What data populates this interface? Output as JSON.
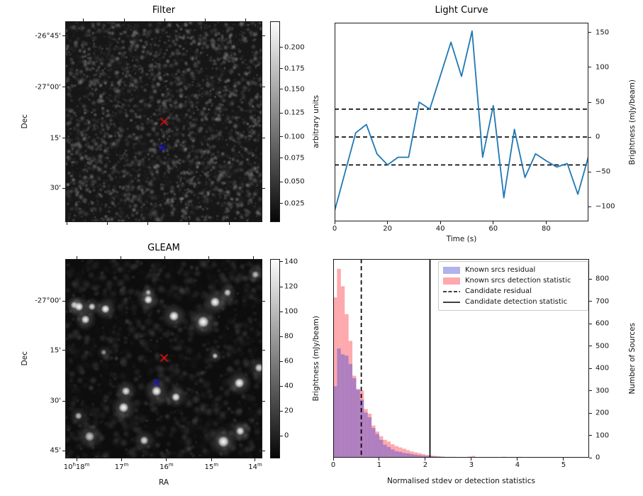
{
  "figure": {
    "background": "#ffffff"
  },
  "chart_data": [
    {
      "id": "filter",
      "type": "heatmap",
      "title": "Filter",
      "ylabel": "Dec",
      "yticks": [
        {
          "label": "-26°45'",
          "pos": 0.074
        },
        {
          "label": "-27°00'",
          "pos": 0.328
        },
        {
          "label": "15'",
          "pos": 0.582
        },
        {
          "label": "30'",
          "pos": 0.832
        }
      ],
      "xticks_bottom_pos": [
        0.008,
        0.215,
        0.42,
        0.628,
        0.832
      ],
      "xticks_top_pos": [
        0.09,
        0.3,
        0.505,
        0.71,
        0.915
      ],
      "colorbar": {
        "label": "arbitrary units",
        "top_color": "#fbfbfb",
        "bottom_color": "#060606",
        "ticks": [
          {
            "label": "0.200",
            "pos": 0.13
          },
          {
            "label": "0.175",
            "pos": 0.236
          },
          {
            "label": "0.150",
            "pos": 0.339
          },
          {
            "label": "0.125",
            "pos": 0.457
          },
          {
            "label": "0.100",
            "pos": 0.575
          },
          {
            "label": "0.075",
            "pos": 0.681
          },
          {
            "label": "0.050",
            "pos": 0.799
          },
          {
            "label": "0.025",
            "pos": 0.908
          }
        ]
      },
      "markers": [
        {
          "shape": "x",
          "color": "#e11212",
          "x": 0.502,
          "y": 0.5
        },
        {
          "shape": "x",
          "color": "#1515dd",
          "x": 0.493,
          "y": 0.629
        }
      ]
    },
    {
      "id": "light_curve",
      "type": "line",
      "title": "Light Curve",
      "xlabel": "Time (s)",
      "ylabel": "Brightness (mJy/beam)",
      "line_color": "#1f77b4",
      "x": [
        0,
        4,
        8,
        12,
        16,
        20,
        24,
        28,
        32,
        36,
        40,
        44,
        48,
        52,
        56,
        60,
        64,
        68,
        72,
        76,
        80,
        84,
        88,
        92,
        96
      ],
      "y": [
        -106,
        -50,
        6,
        18,
        -24,
        -40,
        -29,
        -29,
        50,
        40,
        88,
        136,
        87,
        152,
        -29,
        45,
        -87,
        11,
        -58,
        -24,
        -34,
        -43,
        -38,
        -82,
        -28
      ],
      "hlines": [
        40,
        0,
        -40
      ],
      "xlim": [
        0,
        96
      ],
      "ylim": [
        -121,
        164
      ],
      "xticks": [
        {
          "label": "0",
          "v": 0
        },
        {
          "label": "20",
          "v": 20
        },
        {
          "label": "40",
          "v": 40
        },
        {
          "label": "60",
          "v": 60
        },
        {
          "label": "80",
          "v": 80
        }
      ],
      "yticks": [
        {
          "label": "150",
          "v": 150
        },
        {
          "label": "100",
          "v": 100
        },
        {
          "label": "50",
          "v": 50
        },
        {
          "label": "0",
          "v": 0
        },
        {
          "label": "−50",
          "v": -50
        },
        {
          "label": "−100",
          "v": -100
        }
      ]
    },
    {
      "id": "gleam",
      "type": "heatmap",
      "title": "GLEAM",
      "xlabel": "RA",
      "ylabel": "Dec",
      "yticks": [
        {
          "label": "-27°00'",
          "pos": 0.21
        },
        {
          "label": "15'",
          "pos": 0.459
        },
        {
          "label": "30'",
          "pos": 0.712
        },
        {
          "label": "45'",
          "pos": 0.961
        }
      ],
      "xticks": [
        {
          "pos": 0.058,
          "parts": [
            [
              "10",
              false
            ],
            [
              "h",
              true
            ],
            [
              "18",
              false
            ],
            [
              "m",
              true
            ]
          ]
        },
        {
          "pos": 0.286,
          "parts": [
            [
              "17",
              false
            ],
            [
              "m",
              true
            ]
          ]
        },
        {
          "pos": 0.514,
          "parts": [
            [
              "16",
              false
            ],
            [
              "m",
              true
            ]
          ]
        },
        {
          "pos": 0.742,
          "parts": [
            [
              "15",
              false
            ],
            [
              "m",
              true
            ]
          ]
        },
        {
          "pos": 0.964,
          "parts": [
            [
              "14",
              false
            ],
            [
              "m",
              true
            ]
          ]
        }
      ],
      "xticks_top_pos": [
        0.059,
        0.281,
        0.506,
        0.73,
        0.956
      ],
      "colorbar": {
        "label": "Brightness (mJy/beam)",
        "top_color": "#fbfbfb",
        "bottom_color": "#060606",
        "ticks": [
          {
            "label": "140",
            "pos": 0.014
          },
          {
            "label": "120",
            "pos": 0.139
          },
          {
            "label": "100",
            "pos": 0.264
          },
          {
            "label": "80",
            "pos": 0.389
          },
          {
            "label": "60",
            "pos": 0.514
          },
          {
            "label": "40",
            "pos": 0.638
          },
          {
            "label": "20",
            "pos": 0.763
          },
          {
            "label": "0",
            "pos": 0.887
          }
        ]
      },
      "markers": [
        {
          "shape": "x",
          "color": "#e11212",
          "x": 0.502,
          "y": 0.496
        },
        {
          "shape": "x",
          "color": "#1515dd",
          "x": 0.463,
          "y": 0.62
        }
      ],
      "sources": [
        {
          "x": 0.043,
          "y": 0.229,
          "r": 5,
          "b": 0.9
        },
        {
          "x": 0.067,
          "y": 0.237,
          "r": 6,
          "b": 1.0
        },
        {
          "x": 0.0997,
          "y": 0.302,
          "r": 6,
          "b": 0.95
        },
        {
          "x": 0.133,
          "y": 0.237,
          "r": 5,
          "b": 0.85
        },
        {
          "x": 0.202,
          "y": 0.249,
          "r": 6,
          "b": 1.0
        },
        {
          "x": 0.421,
          "y": 0.202,
          "r": 6,
          "b": 1.0
        },
        {
          "x": 0.421,
          "y": 0.165,
          "r": 4,
          "b": 0.7
        },
        {
          "x": 0.552,
          "y": 0.285,
          "r": 7,
          "b": 1.0
        },
        {
          "x": 0.702,
          "y": 0.314,
          "r": 8,
          "b": 1.0
        },
        {
          "x": 0.762,
          "y": 0.214,
          "r": 7,
          "b": 1.0
        },
        {
          "x": 0.826,
          "y": 0.166,
          "r": 5,
          "b": 0.8
        },
        {
          "x": 0.886,
          "y": 0.623,
          "r": 7,
          "b": 1.0
        },
        {
          "x": 0.463,
          "y": 0.664,
          "r": 7,
          "b": 1.0
        },
        {
          "x": 0.307,
          "y": 0.664,
          "r": 6,
          "b": 0.9
        },
        {
          "x": 0.562,
          "y": 0.694,
          "r": 6,
          "b": 0.95
        },
        {
          "x": 0.295,
          "y": 0.747,
          "r": 7,
          "b": 1.0
        },
        {
          "x": 0.064,
          "y": 0.789,
          "r": 5,
          "b": 0.7
        },
        {
          "x": 0.4,
          "y": 0.913,
          "r": 6,
          "b": 0.85
        },
        {
          "x": 0.805,
          "y": 0.919,
          "r": 8,
          "b": 1.0
        },
        {
          "x": 0.891,
          "y": 0.866,
          "r": 6,
          "b": 0.9
        },
        {
          "x": 0.121,
          "y": 0.893,
          "r": 7,
          "b": 0.75
        },
        {
          "x": 0.987,
          "y": 0.546,
          "r": 6,
          "b": 0.85
        },
        {
          "x": 0.762,
          "y": 0.486,
          "r": 4,
          "b": 0.75
        },
        {
          "x": 0.968,
          "y": 0.075,
          "r": 5,
          "b": 0.7
        },
        {
          "x": 0.193,
          "y": 0.468,
          "r": 4,
          "b": 0.5
        }
      ]
    },
    {
      "id": "histogram",
      "type": "bar",
      "xlabel": "Normalised stdev or detection statistics",
      "ylabel": "Number of Sources",
      "bin_width": 0.0833,
      "series": [
        {
          "name": "Known srcs detection statistic",
          "color": "rgba(250,75,85,0.48)",
          "values": [
            718,
            846,
            768,
            643,
            523,
            367,
            303,
            301,
            218,
            197,
            144,
            117,
            96,
            80,
            72,
            60,
            52,
            46,
            40,
            34,
            28,
            24,
            20,
            16,
            12,
            10,
            8,
            6,
            5,
            4,
            4,
            4,
            3,
            3,
            3,
            5,
            8,
            3,
            2,
            2,
            2,
            1,
            1,
            3,
            4,
            2,
            3,
            2,
            4,
            2,
            3,
            1,
            0,
            1,
            0,
            0,
            1,
            0,
            0,
            1,
            0,
            0,
            3,
            1,
            0,
            1
          ]
        },
        {
          "name": "Known srcs residual",
          "color": "rgba(70,70,215,0.42)",
          "values": [
            320,
            489,
            463,
            457,
            420,
            356,
            308,
            260,
            202,
            181,
            133,
            106,
            80,
            58,
            48,
            37,
            29,
            26,
            21,
            19,
            16,
            13,
            11,
            9,
            8,
            7,
            6,
            5,
            4,
            3,
            3,
            2,
            2,
            2,
            1,
            1,
            1,
            1,
            1,
            1,
            0,
            0,
            0,
            0,
            0,
            0,
            0,
            0,
            0,
            0,
            0,
            0,
            0,
            0,
            0,
            0,
            0,
            0,
            0,
            0,
            0,
            0,
            0,
            0,
            0,
            0
          ]
        }
      ],
      "vlines": [
        {
          "name": "Candidate residual",
          "style": "dashed",
          "x": 0.61
        },
        {
          "name": "Candidate detection statistic",
          "style": "solid",
          "x": 2.1
        }
      ],
      "legend": [
        "Known srcs residual",
        "Known srcs detection statistic",
        "Candidate residual",
        "Candidate detection statistic"
      ],
      "legend_patch_colors": [
        "rgba(70,70,215,0.42)",
        "rgba(250,75,85,0.48)"
      ],
      "xlim": [
        0,
        5.554
      ],
      "ylim": [
        0,
        890
      ],
      "xticks": [
        {
          "label": "0",
          "v": 0
        },
        {
          "label": "1",
          "v": 1
        },
        {
          "label": "2",
          "v": 2
        },
        {
          "label": "3",
          "v": 3
        },
        {
          "label": "4",
          "v": 4
        },
        {
          "label": "5",
          "v": 5
        }
      ],
      "yticks": [
        {
          "label": "0",
          "v": 0
        },
        {
          "label": "100",
          "v": 100
        },
        {
          "label": "200",
          "v": 200
        },
        {
          "label": "300",
          "v": 300
        },
        {
          "label": "400",
          "v": 400
        },
        {
          "label": "500",
          "v": 500
        },
        {
          "label": "600",
          "v": 600
        },
        {
          "label": "700",
          "v": 700
        },
        {
          "label": "800",
          "v": 800
        }
      ]
    }
  ]
}
